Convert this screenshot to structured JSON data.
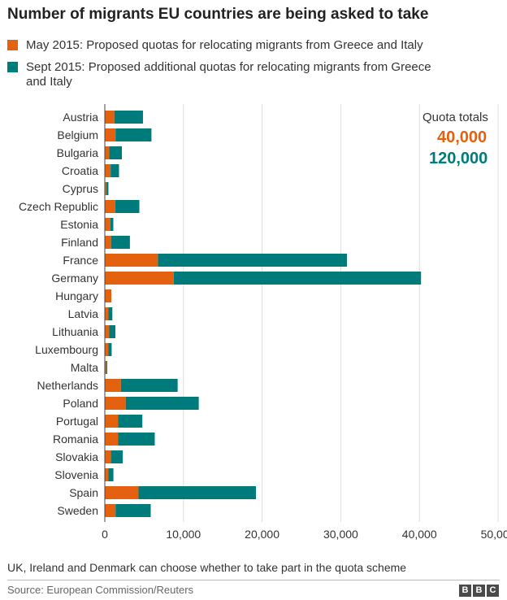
{
  "title": "Number of migrants EU countries are being asked to take",
  "legend": [
    {
      "label": "May 2015: Proposed quotas for relocating migrants from Greece and Italy",
      "color": "#e4620f"
    },
    {
      "label": "Sept 2015: Proposed additional quotas for relocating migrants from Greece and Italy",
      "color": "#007b7b"
    }
  ],
  "totals": {
    "label": "Quota totals",
    "may": "40,000",
    "sept": "120,000"
  },
  "footnote": "UK, Ireland and Denmark can choose whether to take part in the quota scheme",
  "source": "Source: European Commission/Reuters",
  "logo": [
    "B",
    "B",
    "C"
  ],
  "chart_data": {
    "type": "bar",
    "orientation": "horizontal",
    "stacked": true,
    "categories": [
      "Austria",
      "Belgium",
      "Bulgaria",
      "Croatia",
      "Cyprus",
      "Czech Republic",
      "Estonia",
      "Finland",
      "France",
      "Germany",
      "Hungary",
      "Latvia",
      "Lithuania",
      "Luxembourg",
      "Malta",
      "Netherlands",
      "Poland",
      "Portugal",
      "Romania",
      "Slovakia",
      "Slovenia",
      "Spain",
      "Sweden"
    ],
    "series": [
      {
        "name": "May 2015: Proposed quotas for relocating migrants from Greece and Italy",
        "color": "#e4620f",
        "values": [
          1213,
          1364,
          572,
          741,
          185,
          1328,
          708,
          792,
          6752,
          8763,
          827,
          431,
          566,
          429,
          175,
          2047,
          2659,
          1701,
          1705,
          785,
          463,
          4288,
          1369
        ]
      },
      {
        "name": "Sept 2015: Proposed additional quotas for relocating migrants from Greece and Italy",
        "color": "#007b7b",
        "values": [
          3640,
          4564,
          1600,
          1064,
          274,
          3064,
          373,
          2398,
          24031,
          31443,
          0,
          526,
          780,
          440,
          133,
          7214,
          9287,
          3074,
          4646,
          1502,
          631,
          14931,
          4469
        ]
      }
    ],
    "xticks": [
      "0",
      "10,000",
      "20,000",
      "30,000",
      "40,000",
      "50,000"
    ],
    "xlim": [
      0,
      50000
    ],
    "grid": true
  }
}
